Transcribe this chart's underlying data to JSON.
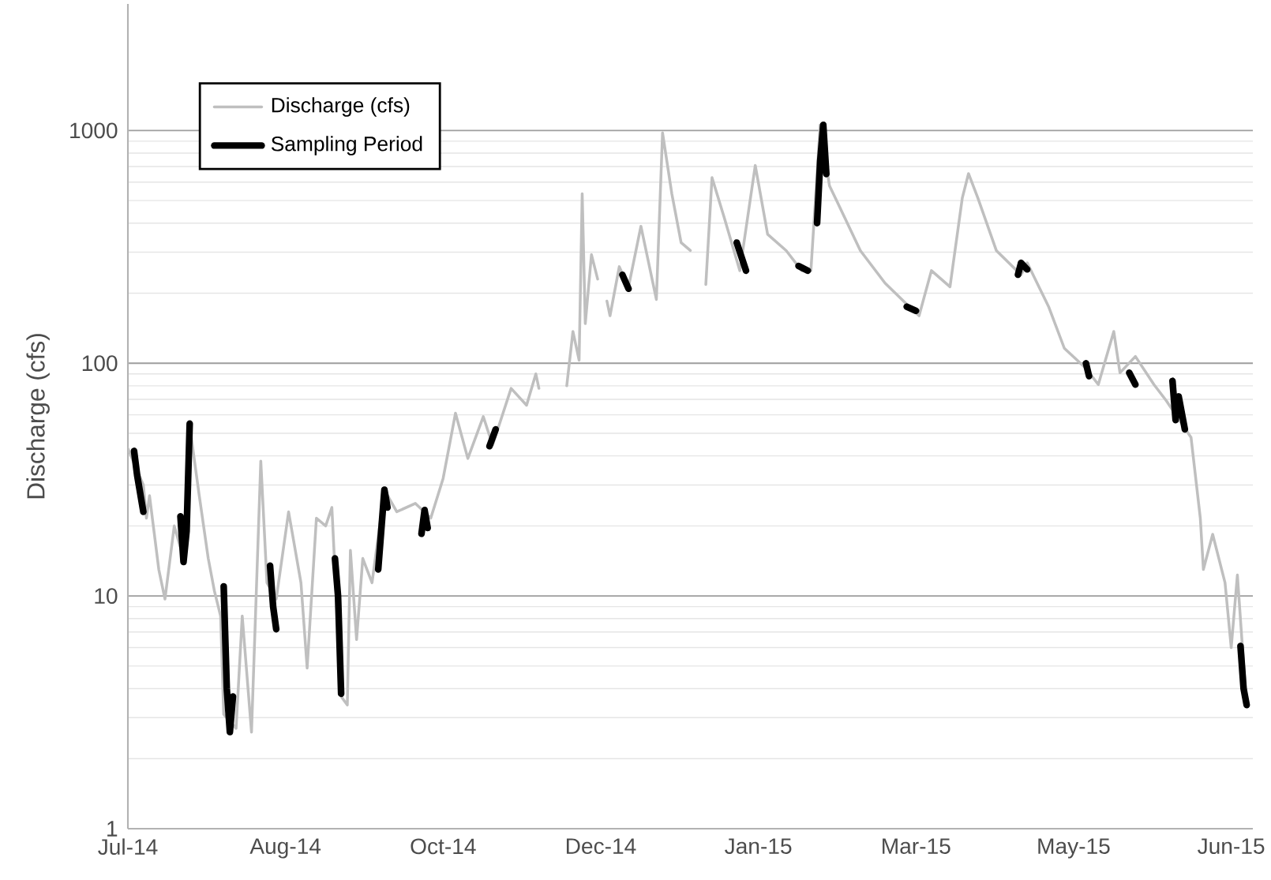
{
  "chart_data": {
    "type": "line",
    "ylabel": "Discharge (cfs)",
    "log": "y",
    "grid": "y",
    "legend": "top left",
    "marker": "none",
    "line_style": "solid",
    "xlim": [
      "2014-07-01",
      "2015-06-30"
    ],
    "xticks": [
      {
        "value": "2014-07-01",
        "label": "Jul-14"
      },
      {
        "value": "2014-08-21",
        "label": "Aug-14"
      },
      {
        "value": "2014-10-11",
        "label": "Oct-14"
      },
      {
        "value": "2014-12-01",
        "label": "Dec-14"
      },
      {
        "value": "2015-01-21",
        "label": "Jan-15"
      },
      {
        "value": "2015-03-13",
        "label": "Mar-15"
      },
      {
        "value": "2015-05-03",
        "label": "May-15"
      },
      {
        "value": "2015-06-23",
        "label": "Jun-15"
      }
    ],
    "ylim": [
      1,
      3500
    ],
    "yticks": [
      1,
      10,
      100,
      1000
    ],
    "series": [
      {
        "name": "Discharge (cfs)",
        "color": "#bfbfbf",
        "x": [
          "2014-07-01",
          "2014-07-06",
          "2014-07-07",
          "2014-07-08",
          "2014-07-11",
          "2014-07-13",
          "2014-07-16",
          "2014-07-19",
          "2014-07-21",
          "2014-07-24",
          "2014-07-27",
          "2014-07-29",
          "2014-07-31",
          "2014-08-01",
          "2014-08-05",
          "2014-08-07",
          "2014-08-10",
          "2014-08-13",
          "2014-08-15",
          "2014-08-18",
          "2014-08-22",
          "2014-08-26",
          "2014-08-28",
          "2014-08-31",
          "2014-09-03",
          "2014-09-05",
          "2014-09-08",
          "2014-09-10",
          "2014-09-11",
          "2014-09-13",
          "2014-09-15",
          "2014-09-18",
          "2014-09-22",
          "2014-09-26",
          "2014-10-02",
          "2014-10-07",
          "2014-10-11",
          "2014-10-15",
          "2014-10-19",
          "2014-10-24",
          "2014-10-27",
          "2014-11-02",
          "2014-11-07",
          "2014-11-10",
          "2014-11-11",
          "2014-11-15",
          "2014-11-20",
          "2014-11-22",
          "2014-11-24",
          "2014-11-25",
          "2014-11-26",
          "2014-11-28",
          "2014-11-30",
          "2014-12-02",
          "2014-12-03",
          "2014-12-04",
          "2014-12-07",
          "2014-12-10",
          "2014-12-14",
          "2014-12-19",
          "2014-12-21",
          "2014-12-24",
          "2014-12-27",
          "2014-12-30",
          "2015-01-02",
          "2015-01-04",
          "2015-01-06",
          "2015-01-10",
          "2015-01-15",
          "2015-01-20",
          "2015-01-24",
          "2015-01-30",
          "2015-02-04",
          "2015-02-07",
          "2015-02-10",
          "2015-02-13",
          "2015-02-18",
          "2015-02-23",
          "2015-03-03",
          "2015-03-11",
          "2015-03-14",
          "2015-03-18",
          "2015-03-24",
          "2015-03-28",
          "2015-03-30",
          "2015-04-02",
          "2015-04-08",
          "2015-04-16",
          "2015-04-18",
          "2015-04-25",
          "2015-04-30",
          "2015-05-07",
          "2015-05-11",
          "2015-05-16",
          "2015-05-18",
          "2015-05-23",
          "2015-05-29",
          "2015-06-02",
          "2015-06-10",
          "2015-06-13",
          "2015-06-14",
          "2015-06-17",
          "2015-06-21",
          "2015-06-23",
          "2015-06-25",
          "2015-06-27",
          "2015-06-28"
        ],
        "values": [
          43,
          30,
          21.6,
          27,
          13,
          9.7,
          20,
          14.5,
          54,
          27.5,
          14.5,
          10.5,
          8.2,
          3.1,
          2.7,
          8.2,
          2.6,
          38,
          11.4,
          9.7,
          23,
          11.4,
          4.9,
          21.6,
          20,
          24,
          3.7,
          3.4,
          15.7,
          6.5,
          14.5,
          11.4,
          28.6,
          23,
          25,
          21.6,
          32,
          61,
          39,
          59,
          44.5,
          78,
          66,
          90,
          78,
          null,
          80,
          137,
          103,
          535,
          148,
          293,
          230,
          null,
          185,
          160,
          260,
          213,
          388,
          188,
          977,
          535,
          330,
          305,
          null,
          218,
          628,
          421,
          250,
          708,
          358,
          305,
          250,
          250,
          1057,
          580,
          421,
          305,
          221,
          174,
          160,
          250,
          213,
          514,
          653,
          514,
          305,
          240,
          270,
          174,
          116,
          95,
          81,
          137,
          91,
          107,
          81,
          69,
          48,
          21.6,
          13,
          18.4,
          11.4,
          6,
          12.3,
          5.1,
          3.4
        ]
      },
      {
        "name": "Sampling Period",
        "color": "#000000",
        "x": [
          "2014-07-03",
          "2014-07-04",
          "2014-07-06",
          "2014-07-12",
          "2014-07-18",
          "2014-07-19",
          "2014-07-20",
          "2014-07-21",
          "2014-07-26",
          "2014-08-01",
          "2014-08-02",
          "2014-08-03",
          "2014-08-04",
          "2014-08-10",
          "2014-08-16",
          "2014-08-17",
          "2014-08-18",
          "2014-08-27",
          "2014-09-06",
          "2014-09-07",
          "2014-09-08",
          "2014-09-14",
          "2014-09-20",
          "2014-09-22",
          "2014-09-23",
          "2014-09-29",
          "2014-10-04",
          "2014-10-05",
          "2014-10-06",
          "2014-10-16",
          "2014-10-26",
          "2014-10-28",
          "2014-11-18",
          "2014-12-08",
          "2014-12-10",
          "2014-12-27",
          "2015-01-14",
          "2015-01-17",
          "2015-01-25",
          "2015-02-03",
          "2015-02-06",
          "2015-02-08",
          "2015-02-09",
          "2015-02-10",
          "2015-02-11",
          "2015-02-12",
          "2015-02-25",
          "2015-03-10",
          "2015-03-13",
          "2015-03-30",
          "2015-04-15",
          "2015-04-16",
          "2015-04-18",
          "2015-05-02",
          "2015-05-07",
          "2015-05-08",
          "2015-05-15",
          "2015-05-21",
          "2015-05-23",
          "2015-05-29",
          "2015-06-04",
          "2015-06-05",
          "2015-06-06",
          "2015-06-08",
          "2015-06-17",
          "2015-06-26",
          "2015-06-27",
          "2015-06-28"
        ],
        "values": [
          42,
          33,
          23,
          null,
          22,
          14,
          19,
          55,
          null,
          11,
          4,
          2.6,
          3.7,
          null,
          13.5,
          9,
          7.2,
          null,
          14.5,
          10,
          3.8,
          null,
          13,
          28.6,
          24,
          null,
          18.5,
          23.4,
          19.6,
          null,
          44,
          52,
          null,
          240,
          209,
          null,
          330,
          250,
          null,
          262,
          250,
          null,
          400,
          738,
          1057,
          650,
          null,
          175,
          168,
          null,
          240,
          270,
          253,
          null,
          100,
          88,
          null,
          91,
          81,
          null,
          84,
          57,
          72,
          52,
          null,
          6.1,
          4,
          3.4
        ]
      }
    ]
  }
}
